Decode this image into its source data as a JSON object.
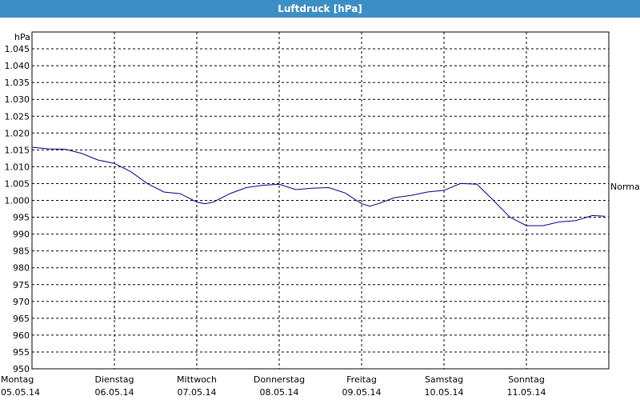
{
  "window": {
    "title": "Luftdruck [hPa]"
  },
  "chart_data": {
    "type": "line",
    "title": "Luftdruck [hPa]",
    "ylabel": "hPa",
    "xlabel": "",
    "ylim": [
      950,
      1050
    ],
    "yticks": [
      950,
      955,
      960,
      965,
      970,
      975,
      980,
      985,
      990,
      995,
      1000,
      1005,
      1010,
      1015,
      1020,
      1025,
      1030,
      1035,
      1040,
      1045
    ],
    "ytick_labels": [
      "950",
      "955",
      "960",
      "965",
      "970",
      "975",
      "980",
      "985",
      "990",
      "995",
      "1.000",
      "1.005",
      "1.010",
      "1.015",
      "1.020",
      "1.025",
      "1.030",
      "1.035",
      "1.040",
      "1.045"
    ],
    "grid": true,
    "days": [
      {
        "name": "Montag",
        "date": "05.05.14"
      },
      {
        "name": "Dienstag",
        "date": "06.05.14"
      },
      {
        "name": "Mittwoch",
        "date": "07.05.14"
      },
      {
        "name": "Donnerstag",
        "date": "08.05.14"
      },
      {
        "name": "Freitag",
        "date": "09.05.14"
      },
      {
        "name": "Samstag",
        "date": "10.05.14"
      },
      {
        "name": "Sonntag",
        "date": "11.05.14"
      }
    ],
    "reference_line": {
      "label": "Normal"
    },
    "series": [
      {
        "color": "#00008b",
        "x": [
          0.0,
          0.2,
          0.4,
          0.6,
          0.8,
          1.0,
          1.2,
          1.4,
          1.6,
          1.8,
          2.0,
          2.1,
          2.2,
          2.4,
          2.6,
          2.8,
          3.0,
          3.2,
          3.4,
          3.6,
          3.8,
          4.0,
          4.1,
          4.2,
          4.4,
          4.6,
          4.8,
          5.0,
          5.2,
          5.4,
          5.6,
          5.8,
          6.0,
          6.2,
          6.4,
          6.6,
          6.8,
          6.95
        ],
        "values": [
          1015.8,
          1015.3,
          1015.2,
          1014,
          1012,
          1011,
          1008.5,
          1005,
          1002.5,
          1002,
          999.5,
          999,
          999.5,
          1002,
          1003.8,
          1004.5,
          1004.8,
          1003.2,
          1003.6,
          1003.8,
          1002.2,
          999,
          998.3,
          999,
          1000.8,
          1001.5,
          1002.5,
          1003,
          1005,
          1004.8,
          1000,
          995,
          992.5,
          992.5,
          993.6,
          994,
          995.5,
          995.3
        ]
      }
    ]
  }
}
